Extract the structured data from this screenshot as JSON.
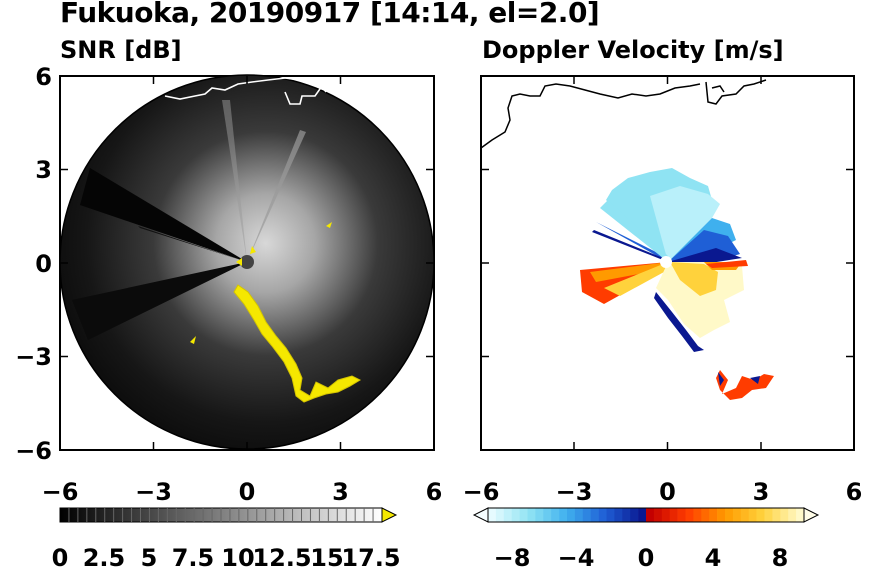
{
  "figure": {
    "title": "Fukuoka, 20190917 [14:14, el=2.0]"
  },
  "chart_data": [
    {
      "type": "heatmap",
      "title": "SNR [dB]",
      "xlabel": "",
      "ylabel": "",
      "xlim": [
        -6,
        6
      ],
      "ylim": [
        -6,
        6
      ],
      "xticks": [
        "−6",
        "−3",
        "0",
        "3",
        "6"
      ],
      "yticks": [
        "6",
        "3",
        "0",
        "−3",
        "−6"
      ],
      "colorbar": {
        "labels": [
          "0",
          "2.5",
          "5",
          "7.5",
          "10",
          "12.5",
          "15",
          "17.5"
        ],
        "range": [
          0,
          18
        ],
        "colors": {
          "low": "#000000",
          "high": "#ffffff",
          "over": "#f5e800"
        },
        "extend": "max"
      },
      "range_rings_km": 6,
      "sectors_blocked_deg": [
        {
          "from": 150,
          "to": 170
        },
        {
          "from": 195,
          "to": 210
        }
      ],
      "strong_echo_color": "#f5e800"
    },
    {
      "type": "heatmap",
      "title": "Doppler Velocity [m/s]",
      "xlabel": "",
      "ylabel": "",
      "xlim": [
        -6,
        6
      ],
      "ylim": [
        -6,
        6
      ],
      "xticks": [
        "−6",
        "−3",
        "0",
        "3",
        "6"
      ],
      "yticks": [],
      "colorbar": {
        "labels": [
          "−8",
          "−4",
          "0",
          "4",
          "8"
        ],
        "range": [
          -10,
          10
        ],
        "colors": {
          "negative": [
            "#e6fbff",
            "#8fe3f3",
            "#3fb0ee",
            "#1f5fd6",
            "#0a1890"
          ],
          "positive": [
            "#c40000",
            "#ff3c00",
            "#ff9a00",
            "#ffd23c",
            "#fff9c8"
          ]
        },
        "extend": "both"
      }
    }
  ]
}
